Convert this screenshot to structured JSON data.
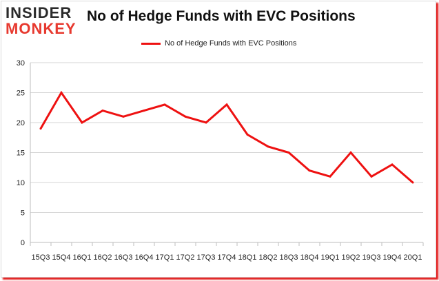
{
  "logo": {
    "line1": "INSIDER",
    "line2": "MONKEY"
  },
  "chart_data": {
    "type": "line",
    "title": "No of Hedge Funds with EVC Positions",
    "xlabel": "",
    "ylabel": "",
    "categories": [
      "15Q3",
      "15Q4",
      "16Q1",
      "16Q2",
      "16Q3",
      "16Q4",
      "17Q1",
      "17Q2",
      "17Q3",
      "17Q4",
      "18Q1",
      "18Q2",
      "18Q3",
      "18Q4",
      "19Q1",
      "19Q2",
      "19Q3",
      "19Q4",
      "20Q1"
    ],
    "series": [
      {
        "name": "No of Hedge Funds with EVC Positions",
        "color": "#ee1111",
        "values": [
          19,
          25,
          20,
          22,
          21,
          22,
          23,
          21,
          20,
          23,
          18,
          16,
          15,
          12,
          11,
          15,
          11,
          13,
          10
        ]
      }
    ],
    "ylim": [
      0,
      30
    ],
    "yticks": [
      0,
      5,
      10,
      15,
      20,
      25,
      30
    ],
    "grid": true,
    "legend_position": "top-center"
  }
}
